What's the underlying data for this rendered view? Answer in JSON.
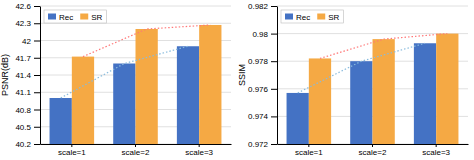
{
  "chart_data": [
    {
      "type": "bar",
      "ylabel": "PSNR(dB)",
      "categories": [
        "scale=1",
        "scale=2",
        "scale=3"
      ],
      "series": [
        {
          "name": "Rec",
          "color": "#4472C4",
          "values": [
            41.0,
            41.6,
            41.9
          ]
        },
        {
          "name": "SR",
          "color": "#F5A944",
          "values": [
            41.72,
            42.2,
            42.27
          ]
        },
        {
          "type": "line",
          "line_style": "dotted",
          "color": "#88BBDD",
          "values": [
            41.0,
            41.6,
            41.9
          ]
        },
        {
          "type": "line",
          "line_style": "dotted",
          "color": "#FF7777",
          "values": [
            41.72,
            42.2,
            42.27
          ]
        }
      ],
      "ylim": [
        40.2,
        42.6
      ],
      "yticks": [
        40.2,
        40.5,
        40.8,
        41.1,
        41.4,
        41.7,
        42,
        42.3,
        42.6
      ],
      "grid": true,
      "legend": "upper left"
    },
    {
      "type": "bar",
      "ylabel": "SSIM",
      "categories": [
        "scale=1",
        "scale=2",
        "scale=3"
      ],
      "series": [
        {
          "name": "Rec",
          "color": "#4472C4",
          "values": [
            0.9757,
            0.978,
            0.9793
          ]
        },
        {
          "name": "SR",
          "color": "#F5A944",
          "values": [
            0.9782,
            0.9796,
            0.98
          ]
        },
        {
          "type": "line",
          "line_style": "dotted",
          "color": "#88BBDD",
          "values": [
            0.9757,
            0.978,
            0.9793
          ]
        },
        {
          "type": "line",
          "line_style": "dotted",
          "color": "#FF7777",
          "values": [
            0.9782,
            0.9796,
            0.98
          ]
        }
      ],
      "ylim": [
        0.972,
        0.982
      ],
      "yticks": [
        0.972,
        0.974,
        0.976,
        0.978,
        0.98,
        0.982
      ],
      "grid": true,
      "legend": "upper left"
    }
  ]
}
